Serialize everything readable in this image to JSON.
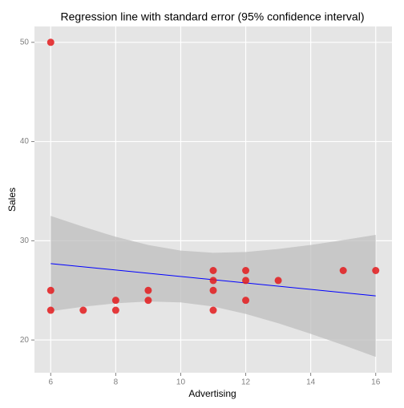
{
  "chart_data": {
    "type": "scatter",
    "title": "Regression line with standard error (95% confidence interval)",
    "x_label": "Advertising",
    "y_label": "Sales",
    "x": [
      6,
      6,
      6,
      7,
      8,
      8,
      9,
      9,
      11,
      11,
      11,
      11,
      12,
      12,
      12,
      13,
      15,
      16
    ],
    "series": [
      {
        "name": "Sales",
        "color": "#e31a1c",
        "values": [
          50,
          25,
          23,
          23,
          24,
          23,
          25,
          24,
          27,
          26,
          25,
          23,
          27,
          26,
          24,
          26,
          27,
          27
        ]
      }
    ],
    "regression": {
      "color": "#0000ff",
      "x": [
        6,
        16
      ],
      "values": [
        27.7,
        24.45
      ]
    },
    "band": {
      "color": "#bdbdbd",
      "x": [
        6,
        7,
        8,
        9,
        10,
        11,
        12,
        13,
        14,
        15,
        16
      ],
      "upper": [
        32.5,
        31.41,
        30.4,
        29.58,
        29.01,
        28.79,
        28.87,
        29.17,
        29.58,
        30.07,
        30.6
      ],
      "lower": [
        22.9,
        23.35,
        23.7,
        23.88,
        23.79,
        23.37,
        22.63,
        21.69,
        20.62,
        19.49,
        18.3
      ]
    },
    "xlim": [
      5.5,
      16.5
    ],
    "ylim": [
      16.7,
      51.6
    ],
    "xticks": [
      6,
      8,
      10,
      12,
      14,
      16
    ],
    "yticks": [
      20,
      30,
      40,
      50
    ],
    "grid": true
  }
}
